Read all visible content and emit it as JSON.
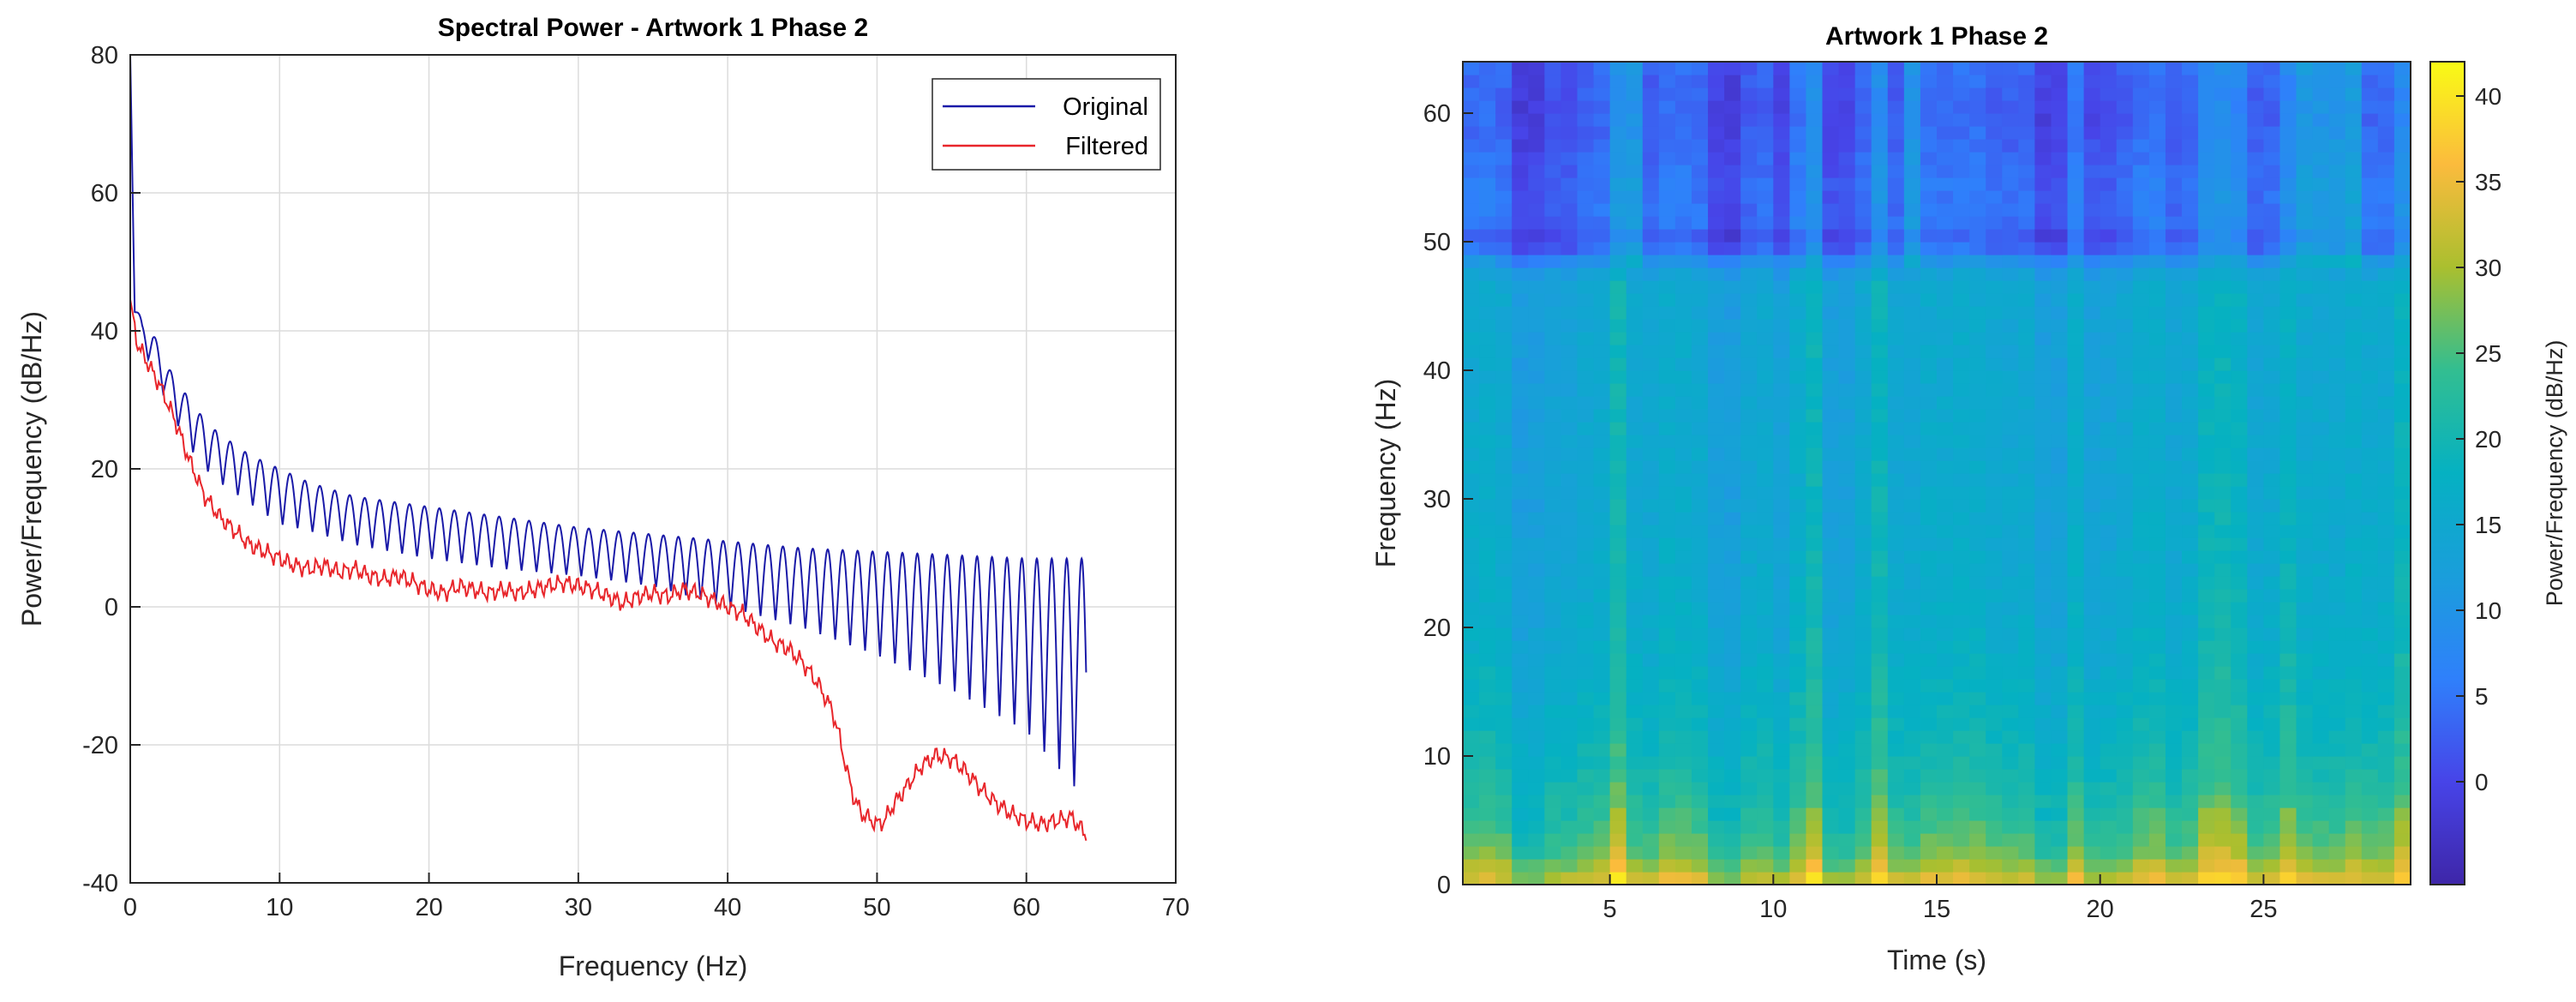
{
  "chart_data": [
    {
      "type": "line",
      "title": "Spectral Power - Artwork 1 Phase 2",
      "xlabel": "Frequency (Hz)",
      "ylabel": "Power/Frequency (dB/Hz)",
      "xlim": [
        0,
        70
      ],
      "ylim": [
        -40,
        80
      ],
      "xticks": [
        0,
        10,
        20,
        30,
        40,
        50,
        60,
        70
      ],
      "yticks": [
        -40,
        -20,
        0,
        20,
        40,
        60,
        80
      ],
      "grid": true,
      "legend_position": "top-right",
      "series": [
        {
          "name": "Original",
          "color": "#1a1aa8",
          "oscillation": {
            "period_hz": 1,
            "phase": 0.3
          },
          "upper_envelope": [
            [
              0,
              80
            ],
            [
              0.3,
              45
            ],
            [
              0.8,
              41
            ],
            [
              1.5,
              40
            ],
            [
              2,
              37
            ],
            [
              3,
              33
            ],
            [
              4,
              30
            ],
            [
              5,
              27
            ],
            [
              6,
              25
            ],
            [
              8,
              22
            ],
            [
              10,
              20
            ],
            [
              12,
              18
            ],
            [
              15,
              16
            ],
            [
              20,
              14.5
            ],
            [
              25,
              13
            ],
            [
              30,
              11.5
            ],
            [
              35,
              10.5
            ],
            [
              40,
              9.5
            ],
            [
              45,
              8.5
            ],
            [
              50,
              8
            ],
            [
              55,
              7.5
            ],
            [
              60,
              7
            ],
            [
              64,
              7
            ]
          ],
          "lower_envelope": [
            [
              0,
              80
            ],
            [
              0.3,
              42
            ],
            [
              0.8,
              37
            ],
            [
              1.5,
              35
            ],
            [
              2,
              32
            ],
            [
              3,
              27
            ],
            [
              4,
              23
            ],
            [
              5,
              20
            ],
            [
              6,
              18
            ],
            [
              8,
              15
            ],
            [
              10,
              12
            ],
            [
              12,
              11
            ],
            [
              15,
              9
            ],
            [
              20,
              7
            ],
            [
              25,
              5.5
            ],
            [
              30,
              4.5
            ],
            [
              35,
              3
            ],
            [
              40,
              0
            ],
            [
              45,
              -3
            ],
            [
              50,
              -7
            ],
            [
              55,
              -12
            ],
            [
              60,
              -18
            ],
            [
              64,
              -28
            ]
          ]
        },
        {
          "name": "Filtered",
          "color": "#e8262b",
          "points": [
            [
              0,
              44
            ],
            [
              0.5,
              38
            ],
            [
              1,
              36
            ],
            [
              1.5,
              34
            ],
            [
              2,
              32
            ],
            [
              3,
              27
            ],
            [
              4,
              21
            ],
            [
              5,
              16
            ],
            [
              6,
              13
            ],
            [
              7,
              11
            ],
            [
              8,
              9
            ],
            [
              9,
              8
            ],
            [
              10,
              7
            ],
            [
              11,
              6
            ],
            [
              12,
              5.5
            ],
            [
              13,
              6
            ],
            [
              14,
              5
            ],
            [
              15,
              5.5
            ],
            [
              16,
              4.5
            ],
            [
              17,
              4
            ],
            [
              18,
              4.5
            ],
            [
              19,
              3.5
            ],
            [
              20,
              2.5
            ],
            [
              21,
              2
            ],
            [
              22,
              3
            ],
            [
              23,
              2.5
            ],
            [
              24,
              2
            ],
            [
              25,
              2.5
            ],
            [
              26,
              2
            ],
            [
              27,
              2.5
            ],
            [
              28,
              3
            ],
            [
              29,
              3.5
            ],
            [
              30,
              3
            ],
            [
              31,
              2.5
            ],
            [
              32,
              1.5
            ],
            [
              33,
              0.5
            ],
            [
              34,
              1.5
            ],
            [
              35,
              2
            ],
            [
              36,
              1.5
            ],
            [
              37,
              2.5
            ],
            [
              38,
              2
            ],
            [
              39,
              1
            ],
            [
              40,
              0
            ],
            [
              41,
              -1
            ],
            [
              42,
              -3
            ],
            [
              43,
              -5
            ],
            [
              44,
              -6
            ],
            [
              45,
              -8
            ],
            [
              46,
              -11
            ],
            [
              47,
              -15
            ],
            [
              47.5,
              -19
            ],
            [
              48,
              -24
            ],
            [
              48.5,
              -28
            ],
            [
              49,
              -30
            ],
            [
              50,
              -31.5
            ],
            [
              50.5,
              -31
            ],
            [
              51,
              -29
            ],
            [
              52,
              -26
            ],
            [
              53,
              -23
            ],
            [
              54,
              -21.5
            ],
            [
              55,
              -22
            ],
            [
              56,
              -24
            ],
            [
              57,
              -26.5
            ],
            [
              58,
              -28.5
            ],
            [
              59,
              -30
            ],
            [
              60,
              -31
            ],
            [
              61,
              -31.5
            ],
            [
              62,
              -31
            ],
            [
              63,
              -30.5
            ],
            [
              64,
              -33
            ]
          ]
        }
      ]
    },
    {
      "type": "heatmap",
      "title": "Artwork 1 Phase 2",
      "xlabel": "Time (s)",
      "ylabel": "Frequency (Hz)",
      "xlim": [
        0.5,
        29.5
      ],
      "ylim": [
        0,
        64
      ],
      "xticks": [
        5,
        10,
        15,
        20,
        25
      ],
      "yticks": [
        0,
        10,
        20,
        30,
        40,
        50,
        60
      ],
      "colormap": "parula",
      "colorbar": {
        "label": "Power/Frequency (dB/Hz)",
        "range": [
          -6,
          42
        ],
        "ticks": [
          0,
          5,
          10,
          15,
          20,
          25,
          30,
          35,
          40
        ]
      },
      "cells": {
        "n_time": 58,
        "n_freq": 64
      },
      "frequency_profile_db": [
        [
          0,
          34
        ],
        [
          1,
          32
        ],
        [
          2,
          28
        ],
        [
          3,
          26
        ],
        [
          5,
          24
        ],
        [
          8,
          21
        ],
        [
          12,
          19
        ],
        [
          20,
          16.5
        ],
        [
          30,
          15.5
        ],
        [
          40,
          15
        ],
        [
          47,
          15
        ],
        [
          49,
          8
        ],
        [
          50,
          1
        ],
        [
          51,
          5
        ],
        [
          55,
          5
        ],
        [
          60,
          3
        ],
        [
          64,
          4
        ]
      ],
      "bright_time_columns_s": [
        5.2,
        11,
        13.2,
        23.5,
        24.2,
        25.7,
        29.2
      ],
      "dark_time_columns_s": [
        2.5,
        3.5,
        8.5,
        10.5,
        12,
        18.5,
        20
      ],
      "light_band_time_columns_s": [
        5.7,
        14.2,
        26.5,
        27.5
      ]
    }
  ]
}
